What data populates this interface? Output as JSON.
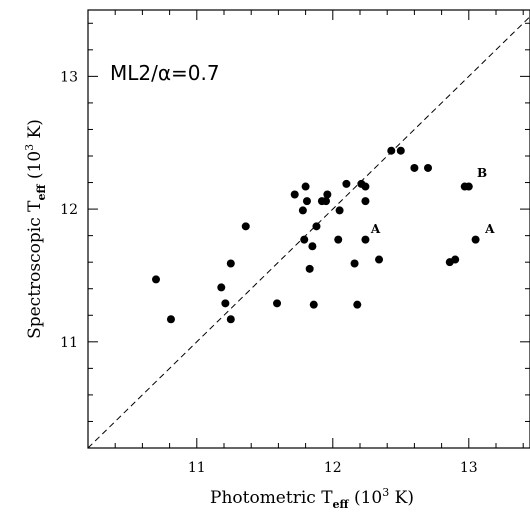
{
  "chart_data": {
    "type": "scatter",
    "title": "",
    "inset_label": "ML2/α=0.7",
    "xlabel": {
      "main": "Photometric T",
      "sub": "eff",
      "unit_pre": " (10",
      "unit_sup": "3",
      "unit_post": " K)"
    },
    "ylabel": {
      "main": "Spectroscopic T",
      "sub": "eff",
      "unit_pre": " (10",
      "unit_sup": "3",
      "unit_post": " K)"
    },
    "xlim": [
      10.2,
      13.45
    ],
    "ylim": [
      10.2,
      13.5
    ],
    "xticks": [
      "11",
      "12",
      "13"
    ],
    "yticks": [
      "11",
      "12",
      "13"
    ],
    "reference_line": "y = x (dashed)",
    "grid": false,
    "points": [
      {
        "x": 10.7,
        "y": 11.47
      },
      {
        "x": 10.81,
        "y": 11.17
      },
      {
        "x": 11.18,
        "y": 11.41
      },
      {
        "x": 11.21,
        "y": 11.29
      },
      {
        "x": 11.25,
        "y": 11.59
      },
      {
        "x": 11.25,
        "y": 11.17
      },
      {
        "x": 11.36,
        "y": 11.87
      },
      {
        "x": 11.59,
        "y": 11.29
      },
      {
        "x": 11.72,
        "y": 12.11
      },
      {
        "x": 11.78,
        "y": 11.99
      },
      {
        "x": 11.79,
        "y": 11.77
      },
      {
        "x": 11.8,
        "y": 12.17
      },
      {
        "x": 11.81,
        "y": 12.06
      },
      {
        "x": 11.83,
        "y": 11.55
      },
      {
        "x": 11.85,
        "y": 11.72
      },
      {
        "x": 11.86,
        "y": 11.28
      },
      {
        "x": 11.88,
        "y": 11.87
      },
      {
        "x": 11.92,
        "y": 12.06
      },
      {
        "x": 11.95,
        "y": 12.06
      },
      {
        "x": 11.96,
        "y": 12.11
      },
      {
        "x": 12.04,
        "y": 11.77
      },
      {
        "x": 12.05,
        "y": 11.99
      },
      {
        "x": 12.1,
        "y": 12.19
      },
      {
        "x": 12.16,
        "y": 11.59
      },
      {
        "x": 12.18,
        "y": 11.28
      },
      {
        "x": 12.21,
        "y": 12.19
      },
      {
        "x": 12.24,
        "y": 12.17
      },
      {
        "x": 12.24,
        "y": 12.06
      },
      {
        "x": 12.24,
        "y": 11.77
      },
      {
        "x": 12.34,
        "y": 11.62
      },
      {
        "x": 12.43,
        "y": 12.44
      },
      {
        "x": 12.5,
        "y": 12.44
      },
      {
        "x": 12.6,
        "y": 12.31
      },
      {
        "x": 12.7,
        "y": 12.31
      },
      {
        "x": 12.86,
        "y": 11.6
      },
      {
        "x": 12.9,
        "y": 11.62
      },
      {
        "x": 12.97,
        "y": 12.17
      },
      {
        "x": 13.0,
        "y": 12.17
      },
      {
        "x": 13.05,
        "y": 11.77
      }
    ],
    "annotations": [
      {
        "text": "A",
        "x": 12.28,
        "y": 11.82
      },
      {
        "text": "B",
        "x": 13.06,
        "y": 12.24
      },
      {
        "text": "A",
        "x": 13.12,
        "y": 11.82
      }
    ]
  }
}
